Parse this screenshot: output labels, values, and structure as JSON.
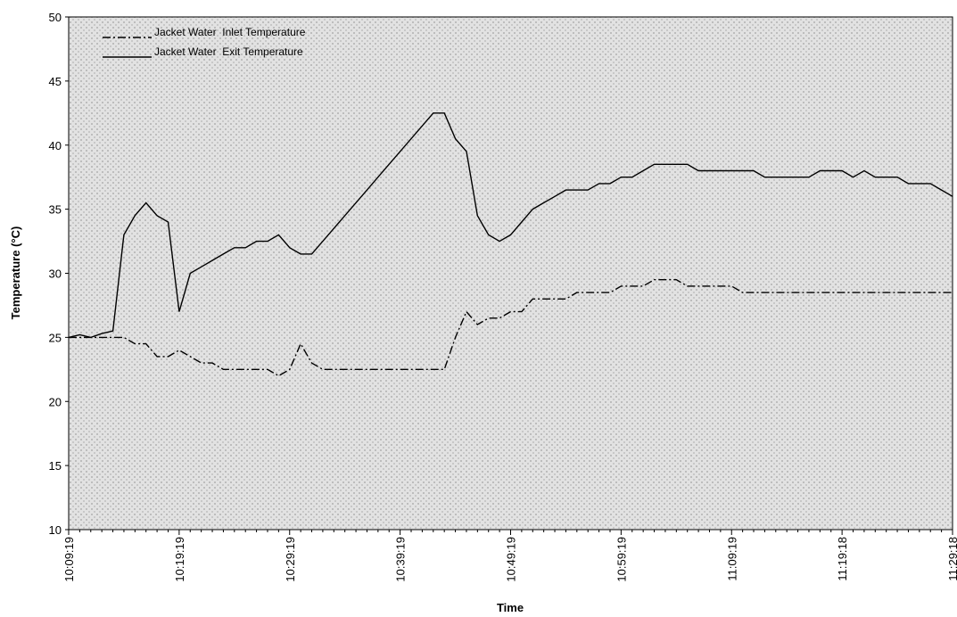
{
  "chart_data": {
    "type": "line",
    "xlabel": "Time",
    "ylabel": "Temperature (°C)",
    "categories": [
      "10:09:19",
      null,
      null,
      null,
      null,
      null,
      null,
      null,
      null,
      null,
      "10:19:19",
      null,
      null,
      null,
      null,
      null,
      null,
      null,
      null,
      null,
      "10:29:19",
      null,
      null,
      null,
      null,
      null,
      null,
      null,
      null,
      null,
      "10:39:19",
      null,
      null,
      null,
      null,
      null,
      null,
      null,
      null,
      null,
      "10:49:19",
      null,
      null,
      null,
      null,
      null,
      null,
      null,
      null,
      null,
      "10:59:19",
      null,
      null,
      null,
      null,
      null,
      null,
      null,
      null,
      null,
      "11:09:19",
      null,
      null,
      null,
      null,
      null,
      null,
      null,
      null,
      null,
      "11:19:18",
      null,
      null,
      null,
      null,
      null,
      null,
      null,
      null,
      null,
      "11:29:18"
    ],
    "ylim": [
      10,
      50
    ],
    "yticks": [
      10,
      15,
      20,
      25,
      30,
      35,
      40,
      45,
      50
    ],
    "legend": "top-left",
    "series": [
      {
        "name": "Jacket Water  Inlet Temperature",
        "color": "#000000",
        "dash": "dash-dot",
        "values": [
          25,
          25,
          25,
          25,
          25,
          25,
          24.5,
          24.5,
          23.5,
          23.5,
          24,
          23.5,
          23,
          23,
          22.5,
          22.5,
          22.5,
          22.5,
          22.5,
          22,
          22.5,
          24.5,
          23,
          22.5,
          22.5,
          22.5,
          22.5,
          22.5,
          22.5,
          22.5,
          22.5,
          22.5,
          22.5,
          22.5,
          22.5,
          25,
          27,
          26,
          26.5,
          26.5,
          27,
          27,
          28,
          28,
          28,
          28,
          28.5,
          28.5,
          28.5,
          28.5,
          29,
          29,
          29,
          29.5,
          29.5,
          29.5,
          29,
          29,
          29,
          29,
          29,
          28.5,
          28.5,
          28.5,
          28.5,
          28.5,
          28.5,
          28.5,
          28.5,
          28.5,
          28.5,
          28.5,
          28.5,
          28.5,
          28.5,
          28.5,
          28.5,
          28.5,
          28.5,
          28.5,
          28.5
        ]
      },
      {
        "name": "Jacket Water  Exit Temperature",
        "color": "#000000",
        "dash": "solid",
        "values": [
          25,
          25.2,
          25,
          25.3,
          25.5,
          33,
          34.5,
          35.5,
          34.5,
          34,
          27,
          30,
          30.5,
          31,
          31.5,
          32,
          32,
          32.5,
          32.5,
          33,
          32,
          31.5,
          31.5,
          32.5,
          33.5,
          34.5,
          35.5,
          36.5,
          37.5,
          38.5,
          39.5,
          40.5,
          41.5,
          42.5,
          42.5,
          40.5,
          39.5,
          34.5,
          33,
          32.5,
          33,
          34,
          35,
          35.5,
          36,
          36.5,
          36.5,
          36.5,
          37,
          37,
          37.5,
          37.5,
          38,
          38.5,
          38.5,
          38.5,
          38.5,
          38,
          38,
          38,
          38,
          38,
          38,
          37.5,
          37.5,
          37.5,
          37.5,
          37.5,
          38,
          38,
          38,
          37.5,
          38,
          37.5,
          37.5,
          37.5,
          37,
          37,
          37,
          36.5,
          36
        ]
      }
    ]
  }
}
